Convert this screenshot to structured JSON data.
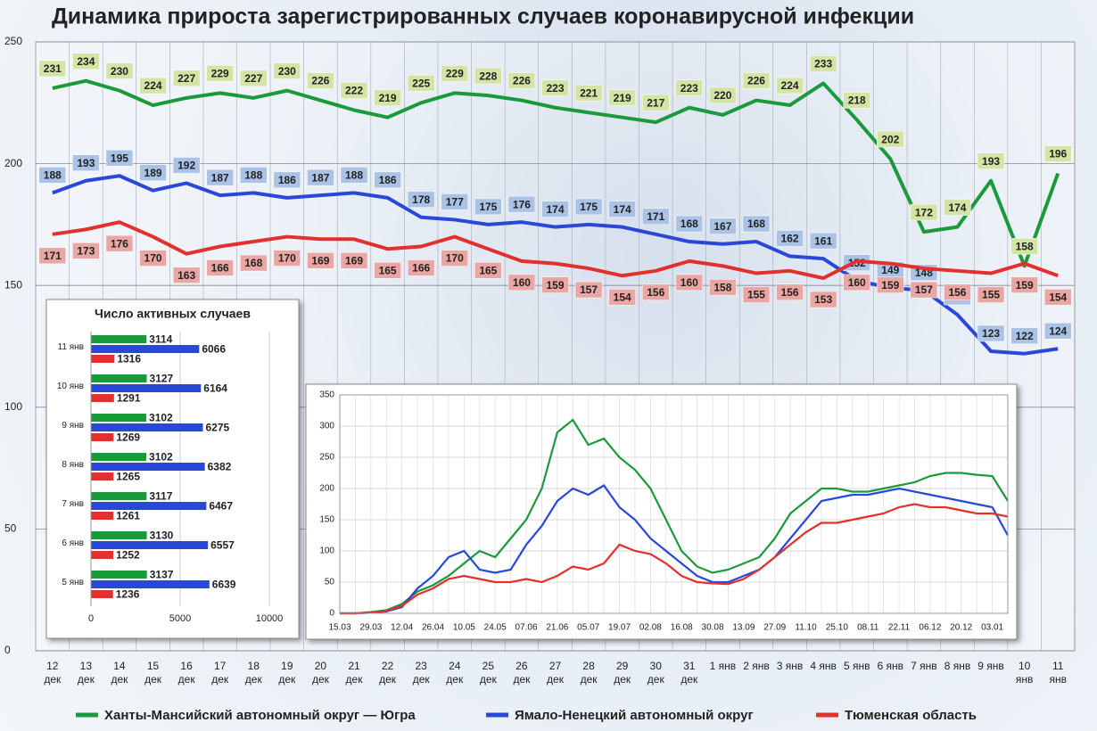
{
  "chart_data": [
    {
      "type": "line",
      "title": "Динамика прироста зарегистрированных случаев коронавирусной инфекции",
      "categories": [
        "12 дек",
        "13 дек",
        "14 дек",
        "15 дек",
        "16 дек",
        "17 дек",
        "18 дек",
        "19 дек",
        "20 дек",
        "21 дек",
        "22 дек",
        "23 дек",
        "24 дек",
        "25 дек",
        "26 дек",
        "27 дек",
        "28 дек",
        "29 дек",
        "30 дек",
        "31 дек",
        "1 янв",
        "2 янв",
        "3 янв",
        "4 янв",
        "5 янв",
        "6 янв",
        "7 янв",
        "8 янв",
        "9 янв",
        "10 янв",
        "11 янв"
      ],
      "series": [
        {
          "name": "Ханты-Мансийский автономный округ — Югра",
          "color": "#1b9a3c",
          "values": [
            231,
            234,
            230,
            224,
            227,
            229,
            227,
            230,
            226,
            222,
            219,
            225,
            229,
            228,
            226,
            223,
            221,
            219,
            217,
            223,
            220,
            226,
            224,
            233,
            218,
            202,
            172,
            174,
            193,
            158,
            196
          ]
        },
        {
          "name": "Ямало-Ненецкий автономный округ",
          "color": "#2a48d8",
          "values": [
            188,
            193,
            195,
            189,
            192,
            187,
            188,
            186,
            187,
            188,
            186,
            178,
            177,
            175,
            176,
            174,
            175,
            174,
            171,
            168,
            167,
            168,
            162,
            161,
            152,
            149,
            148,
            138,
            123,
            122,
            124
          ]
        },
        {
          "name": "Тюменская область",
          "color": "#e2302e",
          "values": [
            171,
            173,
            176,
            170,
            163,
            166,
            168,
            170,
            169,
            169,
            165,
            166,
            170,
            165,
            160,
            159,
            157,
            154,
            156,
            160,
            158,
            155,
            156,
            153,
            160,
            159,
            157,
            156,
            155,
            159,
            154
          ]
        }
      ],
      "ylim": [
        0,
        250
      ],
      "yticks": [
        0,
        50,
        100,
        150,
        200,
        250
      ],
      "grid": true
    },
    {
      "type": "barh",
      "title": "Число активных случаев",
      "categories": [
        "11 янв",
        "10 янв",
        "9 янв",
        "8 янв",
        "7 янв",
        "6 янв",
        "5 янв"
      ],
      "series": [
        {
          "color": "#1b9a3c",
          "values": [
            3114,
            3127,
            3102,
            3102,
            3117,
            3130,
            3137
          ]
        },
        {
          "color": "#2a48d8",
          "values": [
            6066,
            6164,
            6275,
            6382,
            6467,
            6557,
            6639
          ]
        },
        {
          "color": "#e2302e",
          "values": [
            1316,
            1291,
            1269,
            1265,
            1261,
            1252,
            1236
          ]
        }
      ],
      "xlim": [
        0,
        10000
      ],
      "xticks": [
        0,
        5000,
        10000
      ],
      "grid": true
    },
    {
      "type": "line",
      "categories": [
        "15.03",
        null,
        "29.03",
        null,
        "12.04",
        null,
        "26.04",
        null,
        "10.05",
        null,
        "24.05",
        null,
        "07.06",
        null,
        "21.06",
        null,
        "05.07",
        null,
        "19.07",
        null,
        "02.08",
        null,
        "16.08",
        null,
        "30.08",
        null,
        "13.09",
        null,
        "27.09",
        null,
        "11.10",
        null,
        "25.10",
        null,
        "08.11",
        null,
        "22.11",
        null,
        "06.12",
        null,
        "20.12",
        null,
        "03.01",
        null
      ],
      "series": [
        {
          "color": "#1b9a3c",
          "values": [
            0,
            0,
            2,
            5,
            15,
            35,
            45,
            60,
            80,
            100,
            90,
            120,
            150,
            200,
            290,
            310,
            270,
            280,
            250,
            230,
            200,
            150,
            100,
            75,
            65,
            70,
            80,
            90,
            120,
            160,
            180,
            200,
            200,
            195,
            195,
            200,
            205,
            210,
            220,
            225,
            225,
            222,
            220,
            180
          ]
        },
        {
          "color": "#2a48d8",
          "values": [
            0,
            0,
            1,
            3,
            10,
            40,
            60,
            90,
            100,
            70,
            65,
            70,
            110,
            140,
            180,
            200,
            190,
            205,
            170,
            150,
            120,
            100,
            80,
            60,
            50,
            50,
            60,
            70,
            90,
            120,
            150,
            180,
            185,
            190,
            190,
            195,
            200,
            195,
            190,
            185,
            180,
            175,
            170,
            125
          ]
        },
        {
          "color": "#e2302e",
          "values": [
            0,
            0,
            1,
            4,
            12,
            30,
            40,
            55,
            60,
            55,
            50,
            50,
            55,
            50,
            60,
            75,
            70,
            80,
            110,
            100,
            95,
            80,
            60,
            50,
            48,
            47,
            55,
            70,
            90,
            110,
            130,
            145,
            145,
            150,
            155,
            160,
            170,
            175,
            170,
            170,
            165,
            160,
            160,
            155
          ]
        }
      ],
      "ylim": [
        0,
        350
      ],
      "yticks": [
        0,
        50,
        100,
        150,
        200,
        250,
        300,
        350
      ],
      "grid": true
    }
  ]
}
